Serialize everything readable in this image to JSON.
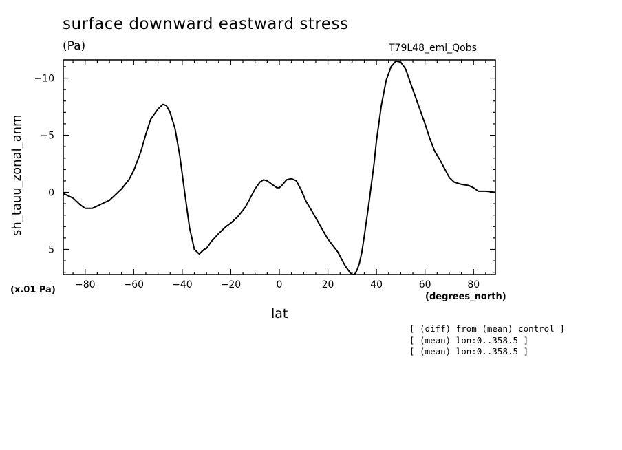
{
  "header": {
    "title": "surface downward eastward stress",
    "units": "(Pa)",
    "run_name": "T79L48_eml_Qobs"
  },
  "axes": {
    "scale_note": "(x.01 Pa)",
    "x_units": "(degrees_north)"
  },
  "notes": [
    "[ (diff) from (mean) control ]",
    "[ (mean) lon:0..358.5 ]",
    "[ (mean) lon:0..358.5 ]"
  ],
  "chart_data": {
    "type": "line",
    "title": "surface downward eastward stress",
    "xlabel": "lat",
    "ylabel": "sh_tauu_zonal_anm",
    "xlim": [
      -89,
      89
    ],
    "ylim": [
      7.2,
      -11.6
    ],
    "y_inverted": true,
    "grid": false,
    "x_ticks": [
      -80,
      -60,
      -40,
      -20,
      0,
      20,
      40,
      60,
      80
    ],
    "x_tick_labels": [
      "−80",
      "−60",
      "−40",
      "−20",
      "0",
      "20",
      "40",
      "60",
      "80"
    ],
    "y_ticks": [
      -10,
      -5,
      0,
      5
    ],
    "y_tick_labels": [
      "−10",
      "−5",
      "0",
      "5"
    ],
    "series": [
      {
        "x": [
          -89,
          -85,
          -82,
          -80,
          -77,
          -75,
          -72,
          -70,
          -68,
          -65,
          -62,
          -60,
          -57,
          -55,
          -53,
          -50,
          -48,
          -46.5,
          -45,
          -43,
          -41,
          -39,
          -37,
          -35,
          -33,
          -31,
          -30,
          -28,
          -25,
          -22,
          -20,
          -17,
          -14,
          -12,
          -10,
          -8,
          -6.5,
          -5,
          -3,
          -1,
          0,
          1,
          3,
          5,
          7,
          9,
          11,
          13,
          16,
          20,
          24,
          27,
          29,
          30,
          31,
          32,
          33,
          34,
          35,
          37,
          39,
          40,
          42,
          44,
          46,
          48,
          50,
          52,
          54,
          57,
          60,
          62,
          64,
          66,
          68,
          70,
          72,
          75,
          78,
          80,
          82,
          85,
          89
        ],
        "y": [
          0.1,
          0.5,
          1.1,
          1.4,
          1.4,
          1.2,
          0.9,
          0.7,
          0.3,
          -0.3,
          -1.1,
          -1.9,
          -3.6,
          -5.1,
          -6.4,
          -7.3,
          -7.7,
          -7.6,
          -7.0,
          -5.6,
          -3.2,
          0.0,
          3.1,
          5.0,
          5.4,
          5.0,
          4.9,
          4.3,
          3.6,
          3.0,
          2.7,
          2.1,
          1.3,
          0.5,
          -0.3,
          -0.9,
          -1.1,
          -1.0,
          -0.7,
          -0.4,
          -0.4,
          -0.6,
          -1.1,
          -1.2,
          -1.0,
          -0.2,
          0.8,
          1.5,
          2.6,
          4.1,
          5.2,
          6.4,
          7.0,
          7.2,
          7.2,
          6.8,
          6.2,
          5.2,
          3.8,
          0.8,
          -2.5,
          -4.5,
          -7.6,
          -9.8,
          -11.0,
          -11.5,
          -11.4,
          -10.8,
          -9.6,
          -7.8,
          -6.0,
          -4.7,
          -3.6,
          -2.9,
          -2.1,
          -1.3,
          -0.9,
          -0.7,
          -0.6,
          -0.4,
          -0.1,
          -0.1,
          0.0
        ]
      }
    ]
  }
}
